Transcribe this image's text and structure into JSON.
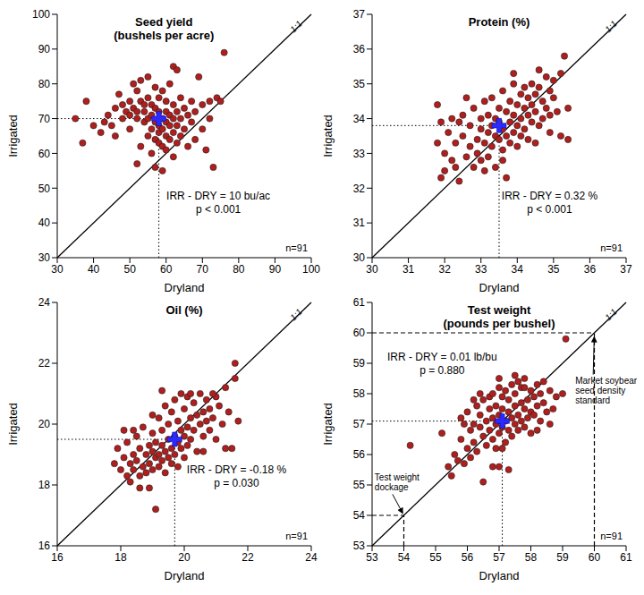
{
  "chart_data": [
    {
      "type": "scatter",
      "title": "Seed yield",
      "subtitle": "(bushels per acre)",
      "x_label": "Dryland",
      "y_label": "Irrigated",
      "xlim": [
        30,
        100
      ],
      "ylim": [
        30,
        100
      ],
      "xticks": [
        30,
        40,
        50,
        60,
        70,
        80,
        90,
        100
      ],
      "yticks": [
        30,
        40,
        50,
        60,
        70,
        80,
        90,
        100
      ],
      "x": [
        35,
        37,
        38,
        40,
        42,
        43,
        44,
        45,
        46,
        47,
        48,
        48,
        49,
        50,
        50,
        50,
        51,
        51,
        52,
        52,
        52,
        53,
        53,
        53,
        54,
        54,
        54,
        55,
        55,
        55,
        55,
        56,
        56,
        56,
        56,
        57,
        57,
        57,
        57,
        57,
        58,
        58,
        58,
        58,
        58,
        59,
        59,
        59,
        59,
        59,
        60,
        60,
        60,
        60,
        60,
        61,
        61,
        61,
        61,
        62,
        62,
        62,
        62,
        62,
        63,
        63,
        63,
        63,
        64,
        64,
        64,
        65,
        65,
        66,
        66,
        67,
        67,
        68,
        68,
        69,
        70,
        70,
        71,
        72,
        72,
        73,
        74,
        75,
        76,
        52,
        46
      ],
      "values": [
        70,
        63,
        75,
        68,
        66,
        69,
        71,
        68,
        73,
        77,
        70,
        74,
        72,
        75,
        71,
        67,
        80,
        73,
        78,
        72,
        70,
        81,
        75,
        62,
        74,
        72,
        69,
        82,
        76,
        70,
        65,
        74,
        71,
        67,
        60,
        79,
        73,
        69,
        64,
        56,
        76,
        72,
        68,
        66,
        63,
        78,
        70,
        67,
        62,
        55,
        75,
        72,
        69,
        65,
        61,
        80,
        71,
        68,
        64,
        85,
        74,
        70,
        66,
        59,
        84,
        72,
        68,
        63,
        76,
        70,
        65,
        73,
        67,
        71,
        62,
        75,
        69,
        72,
        64,
        82,
        74,
        67,
        61,
        75,
        70,
        56,
        76,
        75,
        89,
        57,
        65
      ],
      "color": "#b01e1e",
      "marker": "circle",
      "mean": {
        "x": 58,
        "y": 70,
        "color": "#2a2aff",
        "marker": "cross"
      },
      "reference_line_label": "1:1",
      "annotations": [
        "IRR - DRY = 10 bu/ac",
        "p < 0.001"
      ],
      "n_label": "n=91"
    },
    {
      "type": "scatter",
      "title": "Protein (%)",
      "x_label": "Dryland",
      "y_label": "Irrigated",
      "xlim": [
        30,
        37
      ],
      "ylim": [
        30,
        37
      ],
      "xticks": [
        30,
        31,
        32,
        33,
        34,
        35,
        36,
        37
      ],
      "yticks": [
        30,
        31,
        32,
        33,
        34,
        35,
        36,
        37
      ],
      "x": [
        31.8,
        31.8,
        31.9,
        32.0,
        32.0,
        32.1,
        32.2,
        32.2,
        32.3,
        32.4,
        32.5,
        32.5,
        32.6,
        32.7,
        32.7,
        32.8,
        32.8,
        32.9,
        32.9,
        33.0,
        33.0,
        33.0,
        33.1,
        33.1,
        33.2,
        33.2,
        33.2,
        33.3,
        33.3,
        33.3,
        33.4,
        33.4,
        33.4,
        33.5,
        33.5,
        33.5,
        33.6,
        33.6,
        33.6,
        33.7,
        33.7,
        33.7,
        33.8,
        33.8,
        33.8,
        33.9,
        33.9,
        33.9,
        34.0,
        34.0,
        34.0,
        34.1,
        34.1,
        34.1,
        34.2,
        34.2,
        34.2,
        34.3,
        34.3,
        34.3,
        34.4,
        34.4,
        34.4,
        34.5,
        34.5,
        34.5,
        34.6,
        34.6,
        34.7,
        34.7,
        34.8,
        34.8,
        34.9,
        34.9,
        35.0,
        35.0,
        35.1,
        35.2,
        35.2,
        35.3,
        35.4,
        35.4,
        32.4,
        32.6,
        33.1,
        33.6,
        33.9,
        34.6,
        31.9,
        32.3,
        34.9
      ],
      "values": [
        34.4,
        33.3,
        32.3,
        33.0,
        32.5,
        33.6,
        34.0,
        32.8,
        33.3,
        32.2,
        33.5,
        34.1,
        32.9,
        33.2,
        33.8,
        32.6,
        34.3,
        33.4,
        33.0,
        33.7,
        34.0,
        32.8,
        33.3,
        34.5,
        33.6,
        32.9,
        34.1,
        33.8,
        33.2,
        34.6,
        33.5,
        34.0,
        32.6,
        33.9,
        33.4,
        34.3,
        33.1,
        34.8,
        33.7,
        34.2,
        33.5,
        32.3,
        34.5,
        33.9,
        33.3,
        34.1,
        35.0,
        33.6,
        34.4,
        33.8,
        33.2,
        34.7,
        34.0,
        33.5,
        34.9,
        34.3,
        33.7,
        34.6,
        34.1,
        33.4,
        35.0,
        34.4,
        33.9,
        34.7,
        34.2,
        33.3,
        34.9,
        33.8,
        34.5,
        34.0,
        35.2,
        34.3,
        34.8,
        33.6,
        34.6,
        35.1,
        34.2,
        35.3,
        33.5,
        35.8,
        33.4,
        34.3,
        33.9,
        34.6,
        32.5,
        32.8,
        35.3,
        35.4,
        33.9,
        32.6,
        34.1
      ],
      "color": "#b01e1e",
      "marker": "circle",
      "mean": {
        "x": 33.5,
        "y": 33.8,
        "color": "#2a2aff",
        "marker": "cross"
      },
      "reference_line_label": "1:1",
      "annotations": [
        "IRR - DRY = 0.32 %",
        "p < 0.001"
      ],
      "n_label": "n=91"
    },
    {
      "type": "scatter",
      "title": "Oil (%)",
      "x_label": "Dryland",
      "y_label": "Irrigated",
      "xlim": [
        16,
        24
      ],
      "ylim": [
        16,
        24
      ],
      "xticks": [
        16,
        18,
        20,
        22,
        24
      ],
      "yticks": [
        16,
        18,
        20,
        22,
        24
      ],
      "x": [
        17.8,
        17.9,
        18.0,
        18.1,
        18.2,
        18.2,
        18.3,
        18.3,
        18.4,
        18.4,
        18.5,
        18.5,
        18.6,
        18.6,
        18.7,
        18.7,
        18.8,
        18.8,
        18.9,
        18.9,
        18.9,
        19.0,
        19.0,
        19.0,
        19.1,
        19.1,
        19.1,
        19.2,
        19.2,
        19.2,
        19.3,
        19.3,
        19.3,
        19.4,
        19.4,
        19.4,
        19.5,
        19.5,
        19.5,
        19.6,
        19.6,
        19.6,
        19.7,
        19.7,
        19.7,
        19.8,
        19.8,
        19.8,
        19.9,
        19.9,
        19.9,
        20.0,
        20.0,
        20.0,
        20.1,
        20.1,
        20.1,
        20.2,
        20.2,
        20.3,
        20.3,
        20.4,
        20.4,
        20.5,
        20.5,
        20.6,
        20.6,
        20.7,
        20.7,
        20.8,
        20.8,
        20.9,
        21.0,
        21.0,
        21.1,
        21.2,
        21.3,
        21.4,
        21.5,
        21.6,
        21.6,
        21.7,
        18.1,
        18.6,
        19.3,
        20.2,
        20.9,
        19.0,
        18.4,
        20.6,
        21.3
      ],
      "values": [
        18.7,
        19.2,
        18.5,
        18.9,
        18.3,
        19.4,
        18.7,
        18.1,
        19.0,
        18.5,
        19.6,
        18.8,
        18.3,
        19.2,
        18.6,
        19.9,
        19.0,
        18.4,
        19.3,
        18.7,
        17.9,
        19.1,
        18.5,
        19.7,
        18.9,
        19.4,
        17.2,
        19.0,
        18.6,
        20.2,
        19.3,
        18.8,
        19.8,
        19.1,
        18.4,
        20.6,
        19.5,
        18.9,
        20.0,
        19.2,
        18.7,
        20.4,
        19.6,
        19.0,
        20.8,
        19.4,
        18.6,
        20.1,
        19.8,
        19.2,
        21.0,
        19.6,
        18.9,
        20.5,
        19.9,
        19.3,
        20.9,
        20.2,
        19.5,
        20.7,
        19.8,
        20.3,
        19.1,
        21.0,
        20.0,
        20.4,
        19.6,
        20.8,
        20.1,
        19.8,
        20.5,
        20.2,
        20.9,
        19.5,
        20.6,
        20.0,
        21.2,
        20.4,
        19.2,
        22.0,
        21.5,
        20.1,
        19.8,
        17.9,
        21.1,
        21.0,
        21.0,
        20.3,
        19.8,
        19.1,
        19.2
      ],
      "color": "#b01e1e",
      "marker": "circle",
      "mean": {
        "x": 19.7,
        "y": 19.5,
        "color": "#2a2aff",
        "marker": "cross"
      },
      "reference_line_label": "1:1",
      "annotations": [
        "IRR - DRY = -0.18 %",
        "p = 0.030"
      ],
      "n_label": "n=91"
    },
    {
      "type": "scatter",
      "title": "Test weight",
      "subtitle": "(pounds per bushel)",
      "x_label": "Dryland",
      "y_label": "Irrigated",
      "xlim": [
        53,
        61
      ],
      "ylim": [
        53,
        61
      ],
      "xticks": [
        53,
        54,
        55,
        56,
        57,
        58,
        59,
        60,
        61
      ],
      "yticks": [
        53,
        54,
        55,
        56,
        57,
        58,
        59,
        60,
        61
      ],
      "x": [
        54.2,
        55.4,
        55.5,
        55.6,
        55.7,
        55.8,
        55.8,
        55.9,
        56.0,
        56.0,
        56.1,
        56.1,
        56.2,
        56.2,
        56.3,
        56.3,
        56.4,
        56.4,
        56.5,
        56.5,
        56.5,
        56.6,
        56.6,
        56.7,
        56.7,
        56.7,
        56.8,
        56.8,
        56.8,
        56.9,
        56.9,
        56.9,
        57.0,
        57.0,
        57.0,
        57.0,
        57.1,
        57.1,
        57.1,
        57.2,
        57.2,
        57.2,
        57.3,
        57.3,
        57.3,
        57.4,
        57.4,
        57.4,
        57.5,
        57.5,
        57.5,
        57.6,
        57.6,
        57.6,
        57.7,
        57.7,
        57.7,
        57.8,
        57.8,
        57.8,
        57.9,
        57.9,
        58.0,
        58.0,
        58.0,
        58.1,
        58.1,
        58.2,
        58.2,
        58.3,
        58.3,
        58.4,
        58.4,
        58.5,
        58.6,
        58.7,
        58.8,
        59.0,
        59.1,
        55.2,
        55.9,
        56.4,
        57.0,
        57.5,
        58.2,
        58.6,
        56.8,
        57.3,
        56.2,
        57.8,
        57.1
      ],
      "values": [
        56.3,
        55.6,
        55.3,
        56.0,
        55.8,
        57.2,
        56.5,
        55.7,
        56.2,
        57.4,
        56.8,
        55.9,
        57.0,
        56.4,
        57.6,
        56.1,
        56.9,
        57.3,
        56.6,
        57.8,
        55.1,
        57.1,
        56.3,
        57.5,
        56.8,
        57.9,
        57.2,
        56.5,
        58.0,
        57.0,
        56.2,
        57.6,
        57.3,
        56.7,
        58.2,
        55.6,
        57.5,
        56.9,
        57.9,
        57.1,
        56.4,
        58.1,
        57.4,
        56.8,
        57.8,
        57.2,
        56.6,
        58.3,
        57.6,
        57.0,
        58.0,
        57.3,
        56.8,
        58.4,
        57.7,
        57.1,
        58.2,
        57.5,
        56.9,
        58.5,
        57.8,
        57.2,
        58.1,
        57.4,
        56.7,
        57.9,
        57.3,
        58.3,
        57.6,
        58.0,
        57.1,
        58.4,
        57.7,
        57.4,
        58.1,
        57.5,
        57.9,
        58.0,
        59.8,
        56.7,
        57.0,
        58.0,
        58.5,
        58.6,
        56.8,
        57.0,
        55.6,
        55.5,
        57.8,
        58.2,
        56.2
      ],
      "color": "#b01e1e",
      "marker": "circle",
      "mean": {
        "x": 57.1,
        "y": 57.1,
        "color": "#2a2aff",
        "marker": "cross"
      },
      "reference_line_label": "1:1",
      "annotations": [
        "IRR - DRY = 0.01 lb/bu",
        "p = 0.880"
      ],
      "n_label": "n=91",
      "guides": [
        {
          "value": 60,
          "label": "Market soybean seed density standard"
        },
        {
          "value": 54,
          "label": "Test weight dockage"
        }
      ]
    }
  ]
}
